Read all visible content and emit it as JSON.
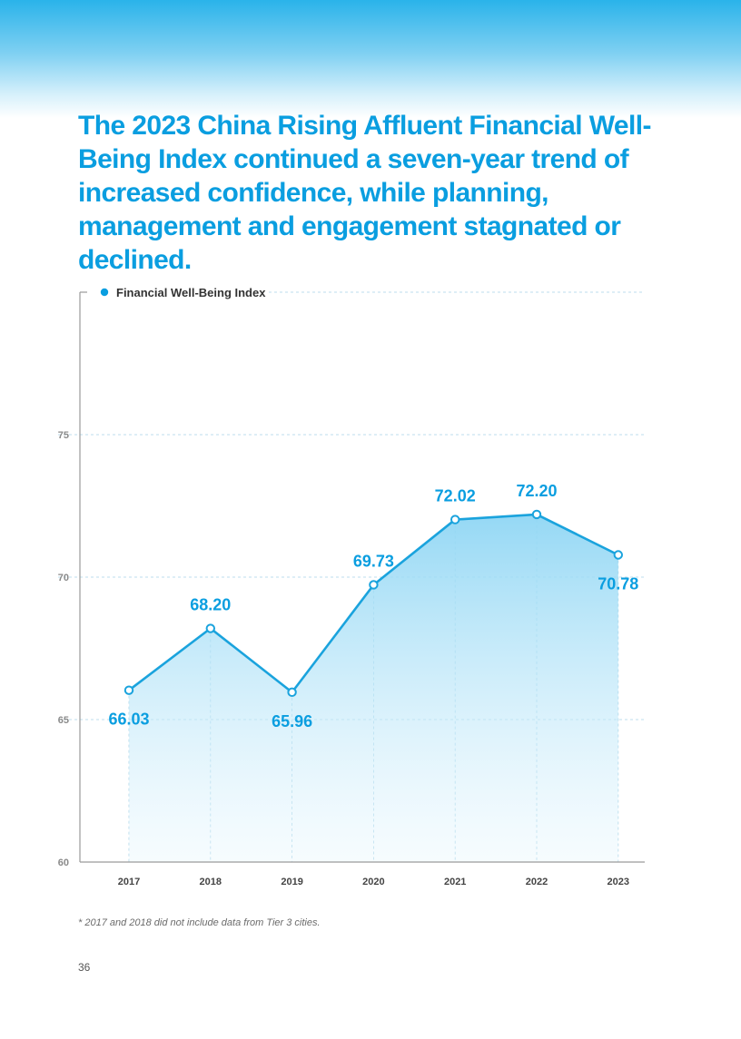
{
  "headline": "The 2023 China Rising Affluent Financial Well-Being Index continued a seven-year trend of increased confidence, while planning, management and engagement stagnated or declined.",
  "footnote": "* 2017 and 2018 did not include data from Tier 3 cities.",
  "page_number": "36",
  "colors": {
    "accent": "#0a9ee0",
    "line": "#1aa3dd",
    "axis_text": "#666666",
    "grid": "#a8d3e6"
  },
  "chart_data": {
    "type": "line",
    "title": "",
    "legend": "Financial Well-Being Index",
    "legend_position": "top-left",
    "categories": [
      "2017",
      "2018",
      "2019",
      "2020",
      "2021",
      "2022",
      "2023"
    ],
    "series": [
      {
        "name": "Financial Well-Being Index",
        "values": [
          66.03,
          68.2,
          65.96,
          69.73,
          72.02,
          72.2,
          70.78
        ],
        "labels": [
          "66.03",
          "68.20",
          "65.96",
          "69.73",
          "72.02",
          "72.20",
          "70.78"
        ]
      }
    ],
    "yticks": [
      "60",
      "65",
      "70",
      "75"
    ],
    "ylim": [
      60,
      80
    ],
    "xlabel": "",
    "ylabel": "",
    "grid": true,
    "area_fill": true
  }
}
